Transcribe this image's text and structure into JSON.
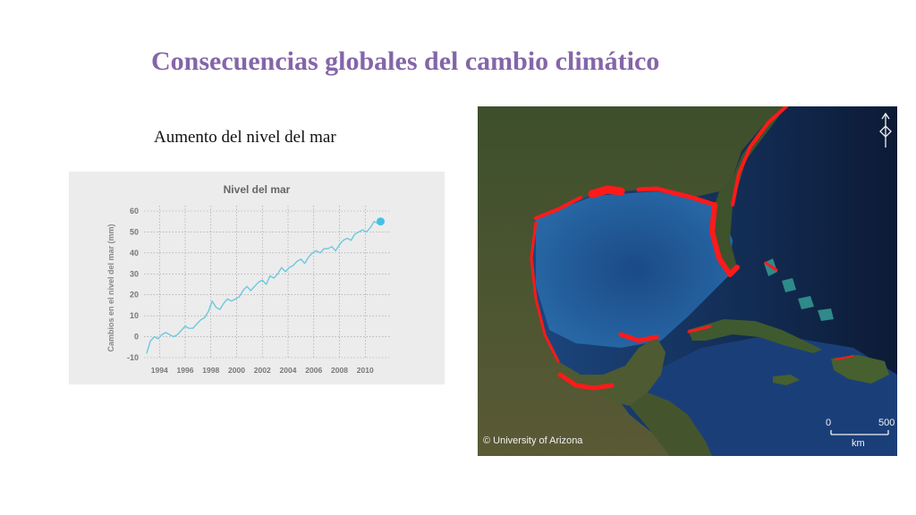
{
  "slide": {
    "title": "Consecuencias globales del cambio climático",
    "subtitle": "Aumento del nivel del mar"
  },
  "chart_data": {
    "type": "line",
    "title": "Nivel del mar",
    "xlabel": "",
    "ylabel": "Cambios en el nivel del mar (mm)",
    "xticks": [
      "1994",
      "1996",
      "1998",
      "2000",
      "2002",
      "2004",
      "2006",
      "2008",
      "2010"
    ],
    "yticks": [
      "-10",
      "0",
      "10",
      "20",
      "30",
      "40",
      "50",
      "60"
    ],
    "xlim": [
      1992.8,
      2012.0
    ],
    "ylim": [
      -10,
      60
    ],
    "grid": true,
    "line_color": "#6dc8e0",
    "series": [
      {
        "x": [
          1993.0,
          1993.3,
          1993.6,
          1993.9,
          1994.2,
          1994.5,
          1994.8,
          1995.1,
          1995.4,
          1995.7,
          1996.0,
          1996.3,
          1996.6,
          1996.9,
          1997.2,
          1997.5,
          1997.8,
          1998.1,
          1998.4,
          1998.7,
          1999.0,
          1999.3,
          1999.6,
          1999.9,
          2000.2,
          2000.5,
          2000.8,
          2001.1,
          2001.4,
          2001.7,
          2002.0,
          2002.3,
          2002.6,
          2002.9,
          2003.2,
          2003.5,
          2003.8,
          2004.1,
          2004.4,
          2004.7,
          2005.0,
          2005.3,
          2005.6,
          2005.9,
          2006.2,
          2006.5,
          2006.8,
          2007.1,
          2007.4,
          2007.7,
          2008.0,
          2008.3,
          2008.6,
          2008.9,
          2009.2,
          2009.5,
          2009.8,
          2010.1,
          2010.4,
          2010.7,
          2011.0
        ],
        "values": [
          -8,
          -2,
          0,
          -1,
          1,
          2,
          1,
          0,
          1,
          3,
          5,
          4,
          4,
          6,
          8,
          9,
          12,
          17,
          14,
          13,
          16,
          18,
          17,
          18,
          19,
          22,
          24,
          22,
          24,
          26,
          27,
          25,
          29,
          28,
          30,
          33,
          31,
          33,
          34,
          36,
          37,
          35,
          38,
          40,
          41,
          40,
          42,
          42,
          43,
          41,
          44,
          46,
          47,
          46,
          49,
          50,
          51,
          50,
          52,
          55,
          54
        ]
      }
    ],
    "endpoint_marker": {
      "x": 2011.2,
      "y": 55,
      "color": "#46c1e6"
    }
  },
  "map": {
    "credit": "© University of Arizona",
    "scale_start": "0",
    "scale_end": "500",
    "scale_unit": "km",
    "ocean_color": "#1d4f8e",
    "deep_ocean_color": "#11284d",
    "land_color": "#42532f",
    "sea_rise_color": "#ff1a1a"
  }
}
